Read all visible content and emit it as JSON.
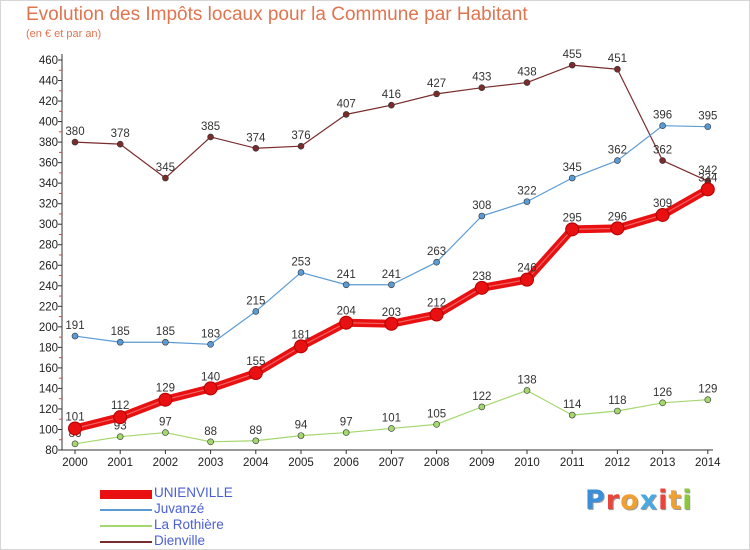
{
  "header": {
    "title": "Evolution des Impôts locaux pour la Commune par Habitant",
    "subtitle": "(en € et par an)"
  },
  "logo": {
    "text": "Proxiti",
    "letter_colors": [
      "#3a8fd8",
      "#e8463a",
      "#f0a030",
      "#4aa8e0",
      "#e8463a",
      "#f0a030",
      "#8cc63f"
    ]
  },
  "chart_data": {
    "type": "line",
    "title": "Evolution des Impôts locaux pour la Commune par Habitant",
    "subtitle": "(en € et par an)",
    "x": [
      "2000",
      "2001",
      "2002",
      "2003",
      "2004",
      "2005",
      "2006",
      "2007",
      "2008",
      "2009",
      "2010",
      "2011",
      "2012",
      "2013",
      "2014"
    ],
    "ylim": [
      80,
      460
    ],
    "yticks": [
      80,
      100,
      120,
      140,
      160,
      180,
      200,
      220,
      240,
      260,
      280,
      300,
      320,
      340,
      360,
      380,
      400,
      420,
      440,
      460
    ],
    "grid": false,
    "legend_position": "bottom-left",
    "series": [
      {
        "name": "UNIENVILLE",
        "color": "#e81010",
        "values": [
          101,
          112,
          129,
          140,
          155,
          181,
          204,
          203,
          212,
          238,
          246,
          295,
          296,
          309,
          334
        ]
      },
      {
        "name": "Juvanzé",
        "color": "#5b9bd5",
        "values": [
          191,
          185,
          185,
          183,
          215,
          253,
          241,
          241,
          263,
          308,
          322,
          345,
          362,
          396,
          395
        ]
      },
      {
        "name": "La Rothière",
        "color": "#a4d86e",
        "values": [
          86,
          93,
          97,
          88,
          89,
          94,
          97,
          101,
          105,
          122,
          138,
          114,
          118,
          126,
          129
        ]
      },
      {
        "name": "Dienville",
        "color": "#7a2c2c",
        "values": [
          380,
          378,
          345,
          385,
          374,
          376,
          407,
          416,
          427,
          433,
          438,
          455,
          451,
          362,
          342
        ]
      }
    ]
  }
}
